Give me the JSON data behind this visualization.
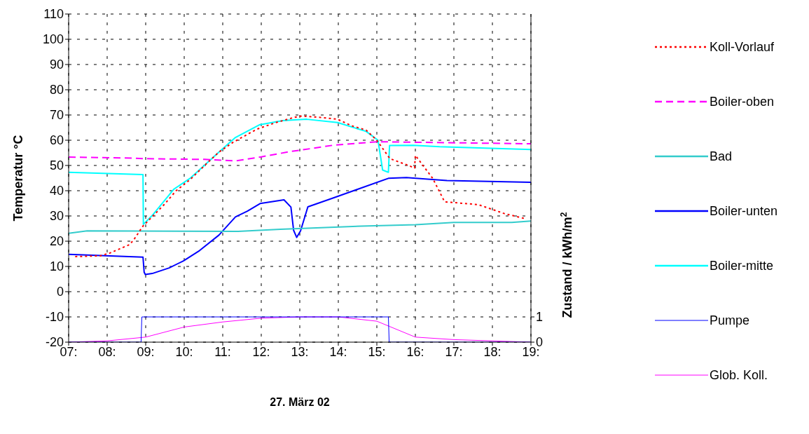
{
  "chart_data": {
    "type": "line",
    "xlabel": "27. März 02",
    "ylabel": "Temperatur °C",
    "y2label": "Zustand / kWh/m$^{2}$",
    "xlim": [
      7,
      19
    ],
    "xticks": [
      {
        "value": 7,
        "label": "07:"
      },
      {
        "value": 8,
        "label": "08:"
      },
      {
        "value": 9,
        "label": "09:"
      },
      {
        "value": 10,
        "label": "10:"
      },
      {
        "value": 11,
        "label": "11:"
      },
      {
        "value": 12,
        "label": "12:"
      },
      {
        "value": 13,
        "label": "13:"
      },
      {
        "value": 14,
        "label": "14:"
      },
      {
        "value": 15,
        "label": "15:"
      },
      {
        "value": 16,
        "label": "16:"
      },
      {
        "value": 17,
        "label": "17:"
      },
      {
        "value": 18,
        "label": "18:"
      },
      {
        "value": 19,
        "label": "19:"
      }
    ],
    "ylim": [
      -20,
      110
    ],
    "yticks": [
      -20,
      -10,
      0,
      10,
      20,
      30,
      40,
      50,
      60,
      70,
      80,
      90,
      100,
      110
    ],
    "y2lim": [
      0,
      13
    ],
    "y2ticks": [
      0,
      1
    ],
    "grid": true,
    "legend": "right",
    "marker": "none",
    "series": [
      {
        "name": "Koll-Vorlauf",
        "color": "#ff0000",
        "line_style": "dotted",
        "x": [
          7.17,
          7.82,
          8.07,
          8.59,
          8.71,
          8.93,
          9.17,
          9.48,
          9.79,
          10.16,
          10.53,
          10.9,
          11.27,
          11.89,
          12.38,
          12.87,
          13.06,
          13.49,
          13.98,
          14.35,
          14.72,
          15.0,
          15.34,
          15.77,
          15.98,
          16.0,
          16.45,
          16.76,
          17.63,
          18.3,
          18.86
        ],
        "values": [
          13.9,
          14.2,
          15.3,
          18.7,
          21,
          26,
          29.7,
          34.5,
          40,
          44.5,
          50,
          55.3,
          59.2,
          64.4,
          67,
          69.1,
          69.6,
          69.1,
          68.3,
          65.7,
          64,
          60,
          52.7,
          50.3,
          49,
          54,
          44.9,
          35.6,
          34.5,
          31,
          28.9
        ]
      },
      {
        "name": "Boiler-oben",
        "color": "#ff00ff",
        "line_style": "dashed",
        "x": [
          7,
          8.68,
          8.93,
          10.53,
          11.33,
          12.0,
          12.75,
          13.12,
          13.86,
          15.03,
          15.96,
          19
        ],
        "values": [
          53.3,
          52.9,
          52.7,
          52.4,
          51.8,
          53.4,
          55.5,
          56.3,
          58,
          59.4,
          59.2,
          58.6
        ]
      },
      {
        "name": "Bad",
        "color": "#33cccc",
        "line_style": "solid",
        "x": [
          7,
          7.48,
          11.4,
          12.5,
          14.6,
          16,
          17,
          18.5,
          19
        ],
        "values": [
          23.1,
          24.1,
          23.9,
          24.7,
          26,
          26.5,
          27.4,
          27.4,
          28
        ]
      },
      {
        "name": "Boiler-unten",
        "color": "#0000ff",
        "line_style": "solid",
        "x": [
          7,
          8.93,
          8.96,
          8.99,
          9.17,
          9.61,
          9.98,
          10.4,
          10.9,
          11.33,
          11.64,
          11.97,
          12.59,
          12.77,
          12.84,
          12.92,
          13.02,
          13.21,
          13.86,
          15.3,
          15.77,
          16.82,
          19
        ],
        "values": [
          14.8,
          13.7,
          7.7,
          6.8,
          7.2,
          9.4,
          12.2,
          16.3,
          22.4,
          29.6,
          31.9,
          34.9,
          36.4,
          33.5,
          24.3,
          21.5,
          24.1,
          33.6,
          37.1,
          44.9,
          45.2,
          44,
          43.3
        ]
      },
      {
        "name": "Boiler-mitte",
        "color": "#00ffff",
        "line_style": "solid",
        "x": [
          7,
          8.93,
          8.94,
          9.17,
          9.73,
          10.16,
          10.9,
          11.33,
          11.95,
          12.56,
          13.18,
          13.98,
          14.72,
          15.03,
          15.15,
          15.3,
          15.33,
          15.95,
          16.63,
          19
        ],
        "values": [
          47.3,
          46.4,
          26.7,
          30.2,
          40.6,
          45,
          55.3,
          61.1,
          66.1,
          67.8,
          68.3,
          67,
          63.5,
          60,
          48.2,
          47.3,
          57.9,
          58,
          57.4,
          56.3
        ]
      },
      {
        "name": "Pumpe",
        "color": "#0000ff",
        "line_style": "solid",
        "axis": "y2",
        "x": [
          7,
          8.88,
          8.9,
          15.3,
          15.32,
          19
        ],
        "values": [
          0,
          0,
          1,
          1,
          0,
          0
        ]
      },
      {
        "name": "Glob. Koll.",
        "color": "#ff00ff",
        "line_style": "solid",
        "axis": "y2",
        "x": [
          7,
          8,
          9,
          10,
          11,
          12,
          13,
          14,
          15,
          16,
          17,
          18,
          19
        ],
        "values": [
          0,
          0.05,
          0.2,
          0.6,
          0.8,
          0.95,
          1,
          1,
          0.83,
          0.2,
          0.1,
          0.05,
          0
        ]
      }
    ]
  }
}
